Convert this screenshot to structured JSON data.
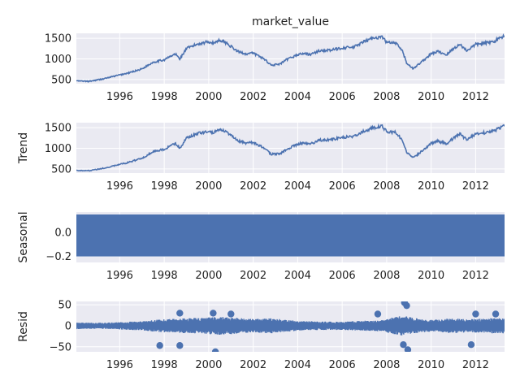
{
  "chart_data": {
    "type": "line",
    "title": "market_value",
    "x_tick_labels": [
      "1996",
      "1998",
      "2000",
      "2002",
      "2004",
      "2006",
      "2008",
      "2010",
      "2012"
    ],
    "xlim": [
      1994.05,
      2013.3
    ],
    "style": {
      "background": "#eaeaf2",
      "grid": "#ffffff",
      "line": "#4c72b0",
      "text": "#222222"
    },
    "panels": [
      {
        "name": "observed",
        "title": "market_value",
        "ylabel": "",
        "ylim": [
          400,
          1620
        ],
        "yticks": [
          500,
          1000,
          1500
        ],
        "ytick_labels": [
          "500",
          "1000",
          "1500"
        ],
        "kind": "line",
        "series": {
          "x": [
            1994.05,
            1994.6,
            1995.2,
            1995.9,
            1996.4,
            1997.0,
            1997.5,
            1998.0,
            1998.5,
            1998.7,
            1999.0,
            1999.5,
            2000.0,
            2000.2,
            2000.5,
            2000.8,
            2001.0,
            2001.3,
            2001.7,
            2002.0,
            2002.5,
            2002.8,
            2003.2,
            2003.5,
            2003.9,
            2004.2,
            2004.6,
            2005.0,
            2005.5,
            2006.0,
            2006.5,
            2007.0,
            2007.4,
            2007.8,
            2008.0,
            2008.4,
            2008.7,
            2008.9,
            2009.2,
            2009.5,
            2010.0,
            2010.3,
            2010.7,
            2011.0,
            2011.3,
            2011.6,
            2012.0,
            2012.4,
            2012.8,
            2013.3
          ],
          "y": [
            470,
            455,
            510,
            600,
            660,
            760,
            920,
            980,
            1120,
            1000,
            1250,
            1360,
            1420,
            1380,
            1460,
            1390,
            1300,
            1180,
            1120,
            1140,
            1000,
            850,
            870,
            980,
            1080,
            1130,
            1110,
            1200,
            1210,
            1270,
            1280,
            1420,
            1510,
            1530,
            1400,
            1380,
            1200,
            900,
            760,
            900,
            1120,
            1180,
            1100,
            1250,
            1350,
            1200,
            1350,
            1380,
            1420,
            1560
          ]
        }
      },
      {
        "name": "trend",
        "title": "",
        "ylabel": "Trend",
        "ylim": [
          400,
          1620
        ],
        "yticks": [
          500,
          1000,
          1500
        ],
        "ytick_labels": [
          "500",
          "1000",
          "1500"
        ],
        "kind": "line",
        "series": {
          "x": [
            1994.05,
            1994.6,
            1995.2,
            1995.9,
            1996.4,
            1997.0,
            1997.5,
            1998.0,
            1998.5,
            1998.7,
            1999.0,
            1999.5,
            2000.0,
            2000.2,
            2000.5,
            2000.8,
            2001.0,
            2001.3,
            2001.7,
            2002.0,
            2002.5,
            2002.8,
            2003.2,
            2003.5,
            2003.9,
            2004.2,
            2004.6,
            2005.0,
            2005.5,
            2006.0,
            2006.5,
            2007.0,
            2007.4,
            2007.8,
            2008.0,
            2008.4,
            2008.7,
            2008.9,
            2009.2,
            2009.5,
            2010.0,
            2010.3,
            2010.7,
            2011.0,
            2011.3,
            2011.6,
            2012.0,
            2012.4,
            2012.8,
            2013.3
          ],
          "y": [
            468,
            456,
            508,
            598,
            658,
            758,
            918,
            978,
            1115,
            1005,
            1245,
            1355,
            1415,
            1385,
            1455,
            1392,
            1305,
            1185,
            1125,
            1138,
            1005,
            855,
            868,
            975,
            1075,
            1128,
            1112,
            1198,
            1208,
            1268,
            1282,
            1418,
            1505,
            1528,
            1405,
            1382,
            1205,
            905,
            765,
            898,
            1118,
            1178,
            1105,
            1248,
            1345,
            1205,
            1348,
            1378,
            1418,
            1555
          ]
        }
      },
      {
        "name": "seasonal",
        "title": "",
        "ylabel": "Seasonal",
        "ylim": [
          -0.25,
          0.17
        ],
        "yticks": [
          0.0,
          -0.2
        ],
        "ytick_labels": [
          "0.0",
          "−0.2"
        ],
        "kind": "band",
        "band": {
          "ymin": -0.2,
          "ymax": 0.15
        }
      },
      {
        "name": "resid",
        "title": "",
        "ylabel": "Resid",
        "ylim": [
          -62,
          58
        ],
        "yticks": [
          50,
          0,
          -50
        ],
        "ytick_labels": [
          "50",
          "0",
          "−50"
        ],
        "kind": "resid",
        "envelope": {
          "x": [
            1994.05,
            1995.0,
            1996.0,
            1997.0,
            1997.8,
            1998.5,
            1999.0,
            2000.0,
            2000.5,
            2001.0,
            2002.0,
            2002.8,
            2003.5,
            2004.0,
            2005.0,
            2006.0,
            2007.0,
            2007.8,
            2008.3,
            2008.7,
            2009.0,
            2009.5,
            2010.0,
            2010.5,
            2011.0,
            2011.5,
            2012.0,
            2012.5,
            2013.3
          ],
          "amp": [
            8,
            7,
            9,
            11,
            15,
            17,
            18,
            20,
            22,
            20,
            16,
            18,
            14,
            12,
            10,
            10,
            12,
            14,
            20,
            24,
            22,
            16,
            14,
            16,
            18,
            16,
            16,
            18,
            18
          ]
        },
        "markers": [
          {
            "x": 1997.8,
            "y": -47
          },
          {
            "x": 1998.7,
            "y": -47
          },
          {
            "x": 1998.7,
            "y": 30
          },
          {
            "x": 2000.2,
            "y": 30
          },
          {
            "x": 2000.3,
            "y": -62
          },
          {
            "x": 2001.0,
            "y": 28
          },
          {
            "x": 2007.6,
            "y": 28
          },
          {
            "x": 2008.8,
            "y": 55
          },
          {
            "x": 2008.9,
            "y": 48
          },
          {
            "x": 2008.75,
            "y": -45
          },
          {
            "x": 2008.95,
            "y": -57
          },
          {
            "x": 2011.8,
            "y": -45
          },
          {
            "x": 2012.0,
            "y": 28
          },
          {
            "x": 2012.9,
            "y": 28
          }
        ]
      }
    ]
  }
}
